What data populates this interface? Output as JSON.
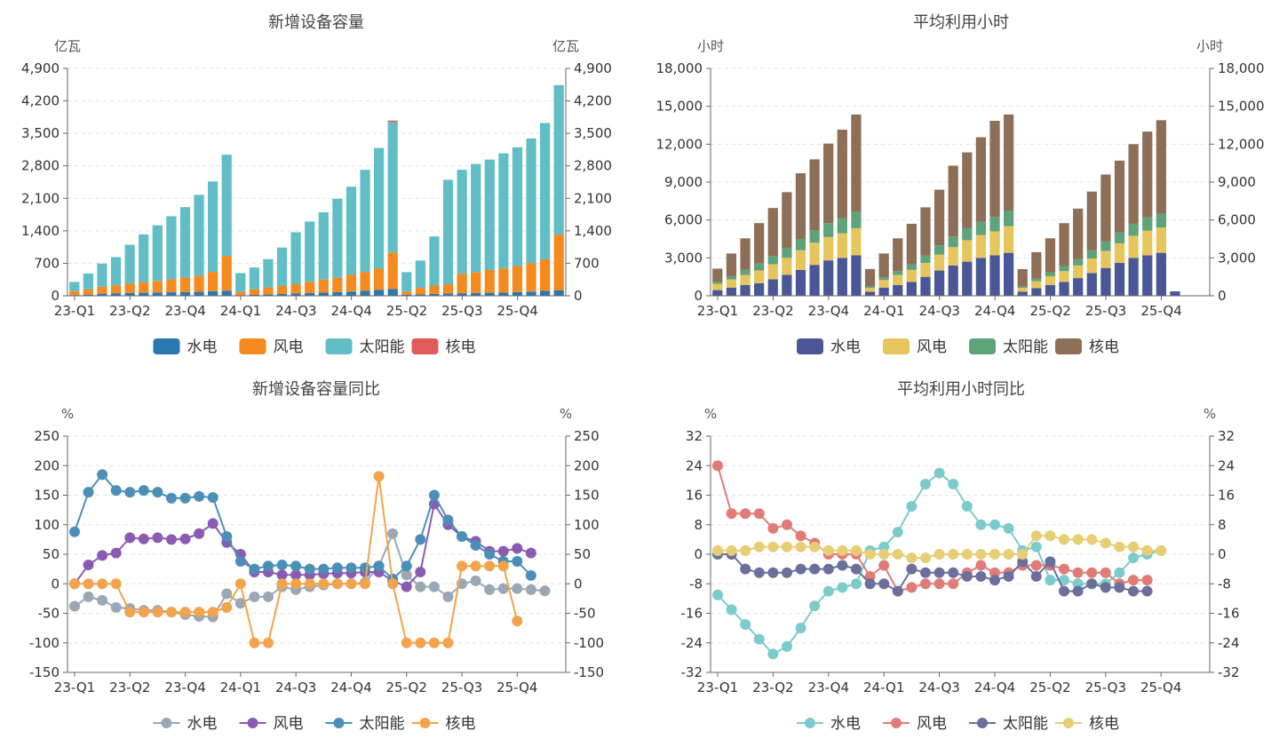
{
  "charts": [
    {
      "id": "c1",
      "type": "stacked-bar",
      "title": "新增设备容量",
      "unit_left": "亿瓦",
      "unit_right": "亿瓦",
      "ylim": [
        0,
        4900
      ],
      "yticks": [
        "0",
        "700",
        "1,400",
        "2,100",
        "2,800",
        "3,500",
        "4,200",
        "4,900"
      ],
      "ytick_values": [
        0,
        700,
        1400,
        2100,
        2800,
        3500,
        4200,
        4900
      ],
      "xlabels": [
        "23-Q1",
        "23-Q2",
        "23-Q4",
        "24-Q1",
        "24-Q3",
        "24-Q4",
        "25-Q2",
        "25-Q3",
        "25-Q4"
      ],
      "xlabel_positions": [
        0,
        4,
        8,
        12,
        16,
        20,
        24,
        28,
        32
      ],
      "legend": [
        "水电",
        "风电",
        "太阳能",
        "核电"
      ],
      "colors": [
        "#2a78b2",
        "#f58a1f",
        "#62bec6",
        "#e25b5b"
      ],
      "series": [
        {
          "name": "水电",
          "values": [
            15,
            25,
            45,
            55,
            60,
            65,
            70,
            75,
            80,
            85,
            95,
            110,
            10,
            20,
            30,
            40,
            50,
            60,
            70,
            80,
            90,
            105,
            125,
            145,
            20,
            30,
            40,
            50,
            55,
            60,
            65,
            70,
            80,
            90,
            105,
            120
          ]
        },
        {
          "name": "风电",
          "values": [
            85,
            115,
            150,
            170,
            200,
            230,
            250,
            280,
            310,
            350,
            420,
            750,
            70,
            120,
            150,
            170,
            200,
            240,
            280,
            310,
            360,
            410,
            460,
            790,
            70,
            140,
            180,
            200,
            420,
            450,
            490,
            520,
            560,
            610,
            680,
            1200
          ]
        },
        {
          "name": "太阳能",
          "values": [
            200,
            340,
            500,
            610,
            840,
            1030,
            1200,
            1360,
            1520,
            1740,
            1950,
            2180,
            410,
            470,
            610,
            830,
            1120,
            1300,
            1450,
            1700,
            1900,
            2200,
            2600,
            2810,
            420,
            590,
            1060,
            2250,
            2240,
            2330,
            2380,
            2480,
            2560,
            2690,
            2940,
            3220
          ]
        },
        {
          "name": "核电",
          "values": [
            0,
            0,
            0,
            0,
            0,
            0,
            0,
            0,
            0,
            0,
            0,
            0,
            0,
            0,
            0,
            0,
            0,
            0,
            0,
            0,
            0,
            0,
            0,
            30,
            0,
            0,
            0,
            0,
            0,
            0,
            0,
            0,
            0,
            0,
            0,
            0
          ]
        }
      ]
    },
    {
      "id": "c2",
      "type": "stacked-bar",
      "title": "平均利用小时",
      "unit_left": "小时",
      "unit_right": "小时",
      "ylim": [
        0,
        18000
      ],
      "yticks": [
        "0",
        "3,000",
        "6,000",
        "9,000",
        "12,000",
        "15,000",
        "18,000"
      ],
      "ytick_values": [
        0,
        3000,
        6000,
        9000,
        12000,
        15000,
        18000
      ],
      "xlabels": [
        "23-Q1",
        "23-Q2",
        "23-Q4",
        "24-Q1",
        "24-Q3",
        "24-Q4",
        "25-Q2",
        "25-Q3",
        "25-Q4"
      ],
      "xlabel_positions": [
        0,
        4,
        8,
        12,
        16,
        20,
        24,
        28,
        32
      ],
      "legend": [
        "水电",
        "风电",
        "太阳能",
        "核电"
      ],
      "colors": [
        "#4a5796",
        "#e6c65c",
        "#5fa37a",
        "#8d6e57"
      ],
      "series": [
        {
          "name": "水电",
          "values": [
            450,
            650,
            850,
            1000,
            1300,
            1650,
            2050,
            2450,
            2800,
            3000,
            3200,
            320,
            650,
            850,
            1100,
            1500,
            2000,
            2400,
            2700,
            3000,
            3200,
            3400,
            330,
            600,
            850,
            1100,
            1400,
            1800,
            2200,
            2600,
            3000,
            3200,
            3400,
            350
          ]
        },
        {
          "name": "风电",
          "values": [
            500,
            650,
            800,
            1000,
            1200,
            1350,
            1550,
            1750,
            1850,
            1950,
            2150,
            300,
            600,
            800,
            950,
            1100,
            1250,
            1450,
            1700,
            1800,
            1900,
            2100,
            300,
            550,
            700,
            850,
            1000,
            1150,
            1350,
            1550,
            1750,
            1950,
            2000,
            0
          ]
        },
        {
          "name": "太阳能",
          "values": [
            150,
            250,
            400,
            550,
            650,
            800,
            900,
            1000,
            1100,
            1200,
            1300,
            100,
            200,
            300,
            450,
            600,
            750,
            850,
            950,
            1050,
            1150,
            1250,
            100,
            200,
            300,
            400,
            500,
            650,
            750,
            850,
            950,
            1050,
            1100,
            0
          ]
        },
        {
          "name": "核电",
          "values": [
            1050,
            1800,
            2500,
            3200,
            3800,
            4400,
            5200,
            5600,
            6300,
            7000,
            7700,
            1400,
            1900,
            2600,
            3200,
            3800,
            4400,
            5600,
            6000,
            6700,
            7600,
            7600,
            1380,
            2100,
            2700,
            3400,
            4000,
            4650,
            5300,
            5700,
            6300,
            6800,
            7400,
            0
          ]
        }
      ]
    },
    {
      "id": "c3",
      "type": "line",
      "title": "新增设备容量同比",
      "unit_left": "%",
      "unit_right": "%",
      "ylim": [
        -150,
        250
      ],
      "yticks": [
        "-150",
        "-100",
        "-50",
        "0",
        "50",
        "100",
        "150",
        "200",
        "250"
      ],
      "ytick_values": [
        -150,
        -100,
        -50,
        0,
        50,
        100,
        150,
        200,
        250
      ],
      "xlabels": [
        "23-Q1",
        "23-Q2",
        "23-Q4",
        "24-Q1",
        "24-Q3",
        "24-Q4",
        "25-Q2",
        "25-Q3",
        "25-Q4"
      ],
      "xlabel_positions": [
        0,
        4,
        8,
        12,
        16,
        20,
        24,
        28,
        32
      ],
      "legend": [
        "水电",
        "风电",
        "太阳能",
        "核电"
      ],
      "colors": [
        "#9aa7b4",
        "#8a5bb2",
        "#4b8fb6",
        "#f3a34b"
      ],
      "series": [
        {
          "name": "水电",
          "values": [
            -38,
            -22,
            -28,
            -40,
            -42,
            -45,
            -45,
            -48,
            -52,
            -55,
            -56,
            -17,
            -33,
            -22,
            -22,
            -5,
            -10,
            -5,
            -2,
            0,
            0,
            2,
            30,
            85,
            15,
            -5,
            -5,
            -22,
            0,
            5,
            -10,
            -8,
            -8,
            -10,
            -12
          ]
        },
        {
          "name": "风电",
          "values": [
            0,
            32,
            48,
            52,
            78,
            76,
            78,
            75,
            76,
            85,
            102,
            70,
            50,
            20,
            20,
            15,
            15,
            15,
            17,
            18,
            18,
            20,
            20,
            5,
            -5,
            20,
            135,
            100,
            80,
            72,
            55,
            55,
            60,
            52
          ]
        },
        {
          "name": "太阳能",
          "values": [
            88,
            155,
            185,
            158,
            155,
            158,
            155,
            145,
            145,
            148,
            146,
            80,
            38,
            25,
            30,
            32,
            30,
            25,
            25,
            27,
            27,
            27,
            30,
            8,
            30,
            75,
            150,
            108,
            80,
            65,
            50,
            38,
            38,
            14
          ]
        },
        {
          "name": "核电",
          "values": [
            0,
            0,
            0,
            0,
            -48,
            -48,
            -48,
            -48,
            -48,
            -48,
            -48,
            -40,
            0,
            -100,
            -100,
            0,
            0,
            0,
            0,
            0,
            0,
            0,
            182,
            0,
            -100,
            -100,
            -100,
            -100,
            30,
            30,
            30,
            30,
            -63
          ]
        }
      ]
    },
    {
      "id": "c4",
      "type": "line",
      "title": "平均利用小时同比",
      "unit_left": "%",
      "unit_right": "%",
      "ylim": [
        -32,
        32
      ],
      "yticks": [
        "-32",
        "-24",
        "-16",
        "-8",
        "0",
        "8",
        "16",
        "24",
        "32"
      ],
      "ytick_values": [
        -32,
        -24,
        -16,
        -8,
        0,
        8,
        16,
        24,
        32
      ],
      "xlabels": [
        "23-Q1",
        "23-Q2",
        "23-Q4",
        "24-Q1",
        "24-Q3",
        "24-Q4",
        "25-Q2",
        "25-Q3",
        "25-Q4"
      ],
      "xlabel_positions": [
        0,
        4,
        8,
        12,
        16,
        20,
        24,
        28,
        32
      ],
      "legend": [
        "水电",
        "风电",
        "太阳能",
        "核电"
      ],
      "colors": [
        "#7ccbcb",
        "#e07b78",
        "#6b6f9a",
        "#e7cd74"
      ],
      "series": [
        {
          "name": "水电",
          "values": [
            -11,
            -15,
            -19,
            -23,
            -27,
            -25,
            -20,
            -14,
            -10,
            -9,
            -8,
            1,
            2,
            6,
            13,
            19,
            22,
            19,
            13,
            8,
            8,
            7,
            1,
            2,
            -7,
            -7,
            -8,
            -8,
            -8,
            -5,
            -1,
            0,
            1
          ]
        },
        {
          "name": "风电",
          "values": [
            24,
            11,
            11,
            11,
            7,
            8,
            5,
            3,
            0,
            0,
            0,
            -6,
            -3,
            -10,
            -9,
            -8,
            -8,
            -8,
            -5,
            -3,
            -5,
            -5,
            -3,
            -3,
            -3,
            -4,
            -5,
            -5,
            -5,
            -8,
            -7,
            -7
          ]
        },
        {
          "name": "太阳能",
          "values": [
            0,
            0,
            -4,
            -5,
            -5,
            -5,
            -4,
            -4,
            -4,
            -3,
            -4,
            -8,
            -8,
            -10,
            -4,
            -5,
            -5,
            -5,
            -6,
            -6,
            -7,
            -6,
            -2,
            -6,
            -2,
            -10,
            -10,
            -8,
            -9,
            -9,
            -10,
            -10
          ]
        },
        {
          "name": "核电",
          "values": [
            1,
            1,
            1,
            2,
            2,
            2,
            2,
            2,
            1,
            1,
            1,
            0,
            0,
            0,
            -1,
            -1,
            0,
            0,
            0,
            0,
            0,
            0,
            0,
            5,
            5,
            4,
            4,
            4,
            3,
            2,
            2,
            1,
            1
          ]
        }
      ]
    }
  ]
}
